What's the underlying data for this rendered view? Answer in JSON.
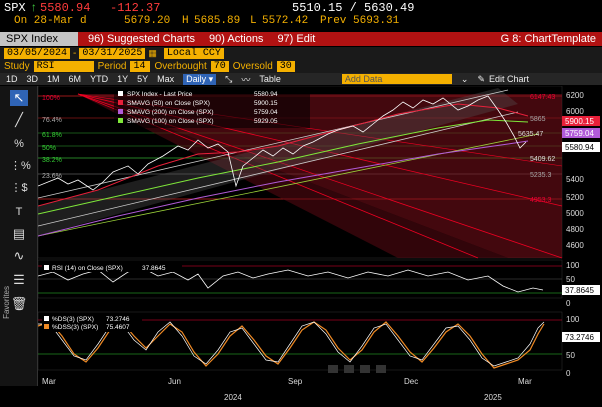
{
  "quote": {
    "ticker": "SPX",
    "last": "5580.94",
    "change": "-112.37",
    "range": "5510.15 / 5630.49",
    "date_label": "On 28-Mar d",
    "open": "5679.20",
    "high": "5685.89",
    "low": "5572.42",
    "prev": "Prev 5693.31"
  },
  "titlebar": {
    "index_name": "SPX Index",
    "menu": [
      "96) Suggested Charts",
      "90) Actions",
      "97) Edit"
    ],
    "template": "G 8: ChartTemplate"
  },
  "dates": {
    "start": "03/05/2024",
    "end": "03/31/2025",
    "currency": "Local CCY"
  },
  "study": {
    "study_label": "Study",
    "study_value": "RSI",
    "period_label": "Period",
    "period_value": "14",
    "overbought_label": "Overbought",
    "overbought_value": "70",
    "oversold_label": "Oversold",
    "oversold_value": "30"
  },
  "toolbar": {
    "ranges": [
      "1D",
      "3D",
      "1M",
      "6M",
      "YTD",
      "1Y",
      "5Y",
      "Max"
    ],
    "frequency": "Daily",
    "table": "Table",
    "add_data": "Add Data",
    "edit_chart": "Edit Chart"
  },
  "left_tools": [
    "cursor-icon",
    "pencil-icon",
    "percent-icon",
    "fibonacci-icon",
    "dollar-icon",
    "text-tool-icon",
    "favorites-icon",
    "grid-icon",
    "wave-icon",
    "lines-icon",
    "trash-icon"
  ],
  "favorites_label": "Favorites",
  "legend": {
    "price": [
      {
        "label": "SPX Index - Last Price",
        "value": "5580.94",
        "color": "#ffffff"
      },
      {
        "label": "SMAVG (50)  on Close (SPX)",
        "value": "5900.15",
        "color": "#e8203a"
      },
      {
        "label": "SMAVG (200)  on Close (SPX)",
        "value": "5759.04",
        "color": "#b15bd8"
      },
      {
        "label": "SMAVG (100)  on Close (SPX)",
        "value": "5929.05",
        "color": "#7fe83a"
      }
    ],
    "rsi": {
      "label": "RSI (14) on Close (SPX)",
      "value": "37.8645"
    },
    "stoch": [
      {
        "label": "%DS(3) (SPX)",
        "value": "73.2746",
        "color": "#ffffff"
      },
      {
        "label": "%DSS(3) (SPX)",
        "value": "75.4607",
        "color": "#f08a24"
      }
    ]
  },
  "fib_labels": [
    "100%",
    "76.4%",
    "61.8%",
    "50%",
    "38.2%",
    "23.6%"
  ],
  "fib_values": [
    "6147.43",
    "5865",
    "5635.47",
    "5409.62",
    "5235.3",
    "4953.3"
  ],
  "price_axis": [
    6200,
    6000,
    5800,
    5600,
    5400,
    5200,
    5000,
    4800,
    4600
  ],
  "price_badges": [
    "5900.15",
    "5759.04",
    "5580.94"
  ],
  "rsi_axis": [
    100,
    50,
    0
  ],
  "stoch_axis": [
    100,
    50,
    0
  ],
  "x_axis": {
    "months": [
      "Mar",
      "Jun",
      "Sep",
      "Dec",
      "Mar"
    ],
    "years": [
      "2024",
      "2025"
    ]
  },
  "colors": {
    "red": "#b11212",
    "orange": "#f4b000",
    "bg": "#000000"
  }
}
